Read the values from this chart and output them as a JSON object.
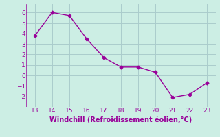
{
  "x": [
    13,
    14,
    15,
    16,
    17,
    18,
    19,
    20,
    21,
    22,
    23
  ],
  "y": [
    3.8,
    6.0,
    5.7,
    3.5,
    1.7,
    0.8,
    0.8,
    0.3,
    -2.1,
    -1.8,
    -0.7
  ],
  "line_color": "#990099",
  "marker": "D",
  "marker_size": 2.5,
  "bg_color": "#cceee4",
  "grid_color": "#aacccc",
  "xlabel": "Windchill (Refroidissement éolien,°C)",
  "xlabel_color": "#990099",
  "xlim": [
    12.5,
    23.5
  ],
  "ylim": [
    -3.0,
    6.8
  ],
  "xticks": [
    13,
    14,
    15,
    16,
    17,
    18,
    19,
    20,
    21,
    22,
    23
  ],
  "yticks": [
    -2,
    -1,
    0,
    1,
    2,
    3,
    4,
    5,
    6
  ],
  "tick_color": "#990099",
  "tick_fontsize": 6.5,
  "xlabel_fontsize": 7.0,
  "line_width": 1.0
}
